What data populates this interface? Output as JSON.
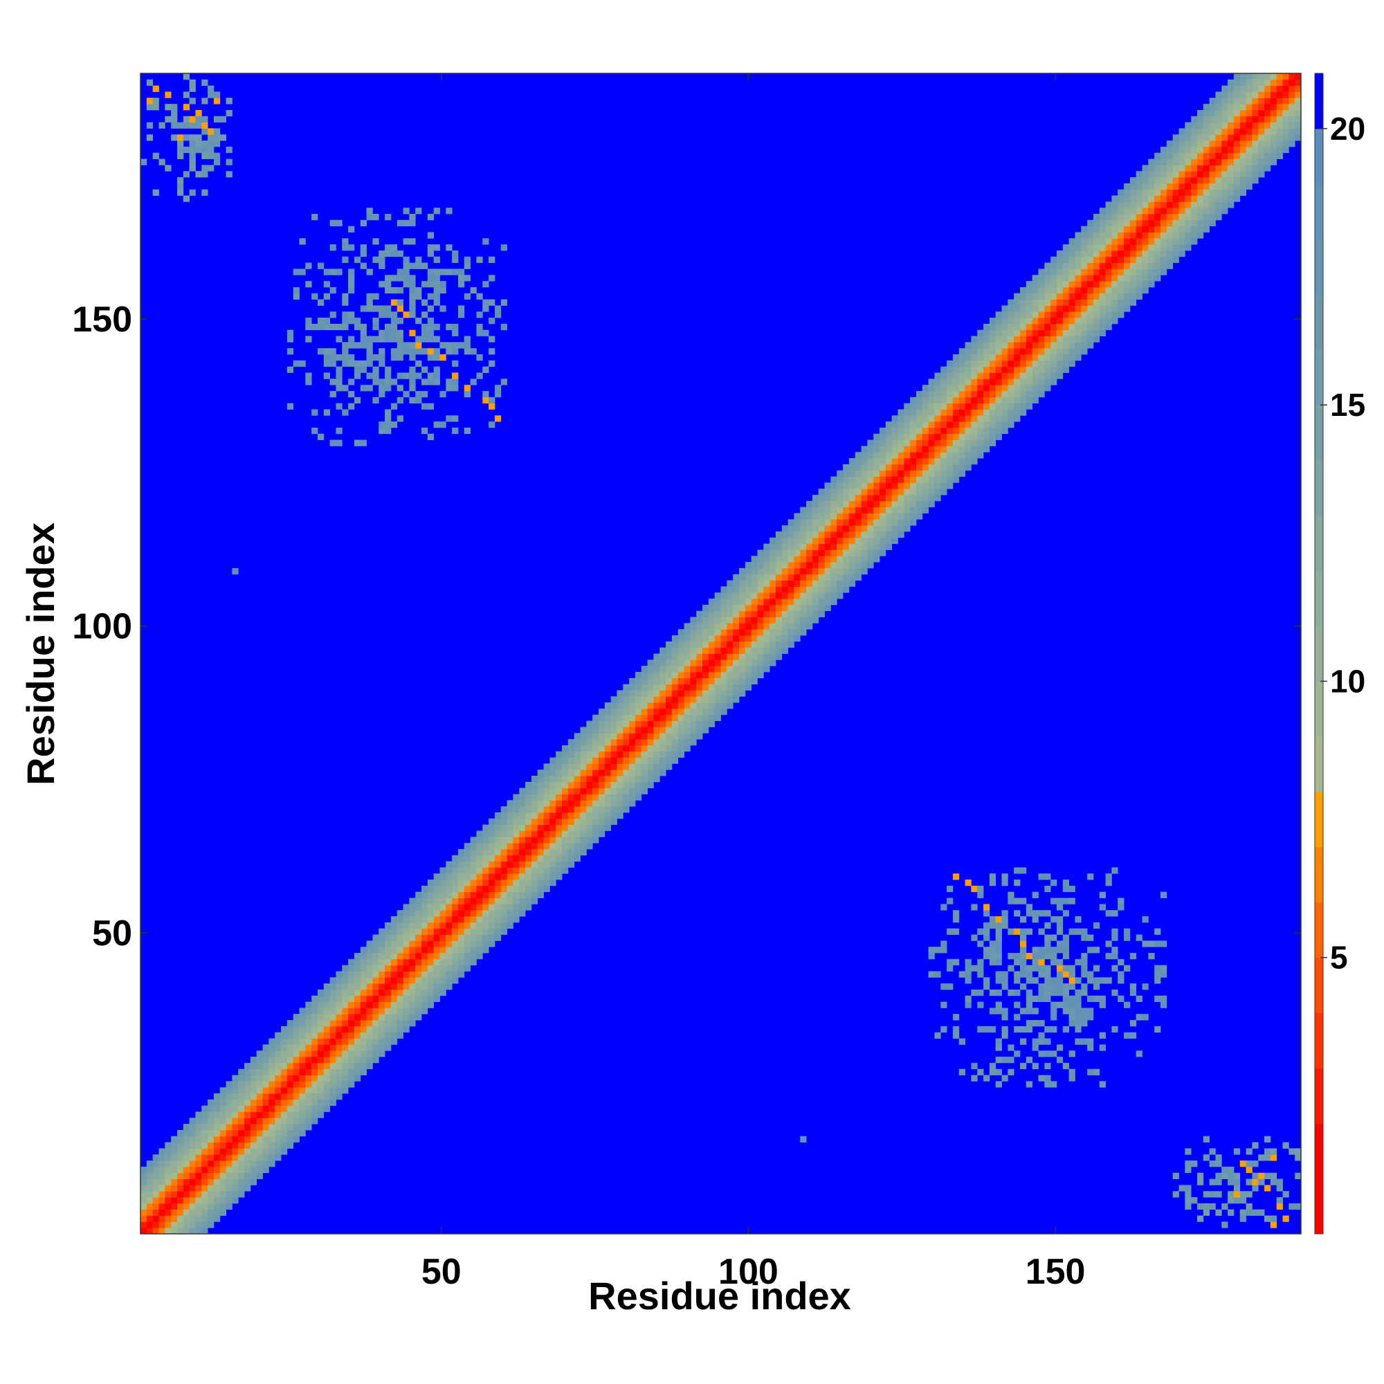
{
  "chart_data": {
    "type": "heatmap",
    "title": "",
    "xlabel": "Residue index",
    "ylabel": "Residue index",
    "xlim": [
      1,
      190
    ],
    "ylim": [
      1,
      190
    ],
    "x_ticks": [
      50,
      100,
      150
    ],
    "y_ticks": [
      50,
      100,
      150
    ],
    "grid": false,
    "legend": "none",
    "value_description": "pairwise residue distance",
    "colorbar": {
      "position": "right",
      "range": [
        0,
        21
      ],
      "ticks": [
        5,
        10,
        15,
        20
      ],
      "levels": [
        {
          "from": 0,
          "to": 2,
          "color": "#ff0000"
        },
        {
          "from": 2,
          "to": 3,
          "color": "#ff1a00"
        },
        {
          "from": 3,
          "to": 4,
          "color": "#ff3300"
        },
        {
          "from": 4,
          "to": 5,
          "color": "#ff4d00"
        },
        {
          "from": 5,
          "to": 6,
          "color": "#ff6600"
        },
        {
          "from": 6,
          "to": 7,
          "color": "#ff8000"
        },
        {
          "from": 7,
          "to": 8,
          "color": "#ffa000"
        },
        {
          "from": 8,
          "to": 9,
          "color": "#a6b98f"
        },
        {
          "from": 9,
          "to": 10,
          "color": "#9db593"
        },
        {
          "from": 10,
          "to": 11,
          "color": "#95b097"
        },
        {
          "from": 11,
          "to": 12,
          "color": "#8dac9b"
        },
        {
          "from": 12,
          "to": 13,
          "color": "#86a89f"
        },
        {
          "from": 13,
          "to": 14,
          "color": "#7fa3a3"
        },
        {
          "from": 14,
          "to": 15,
          "color": "#789fa7"
        },
        {
          "from": 15,
          "to": 16,
          "color": "#729cab"
        },
        {
          "from": 16,
          "to": 17,
          "color": "#6c98af"
        },
        {
          "from": 17,
          "to": 18,
          "color": "#6794b3"
        },
        {
          "from": 18,
          "to": 19,
          "color": "#6291b7"
        },
        {
          "from": 19,
          "to": 20,
          "color": "#5e8dbb"
        },
        {
          "from": 20,
          "to": 21,
          "color": "#0000ff"
        }
      ]
    },
    "background_value": 21,
    "diagonal_band": {
      "profile": [
        {
          "offset": 0,
          "value": 1
        },
        {
          "offset": 1,
          "value": 3
        },
        {
          "offset": 2,
          "value": 5
        },
        {
          "offset": 3,
          "value": 6.5
        },
        {
          "offset": 4,
          "value": 8.5
        },
        {
          "offset": 5,
          "value": 10
        },
        {
          "offset": 6,
          "value": 11
        },
        {
          "offset": 7,
          "value": 12.5
        },
        {
          "offset": 8,
          "value": 14
        },
        {
          "offset": 9,
          "value": 15.5
        },
        {
          "offset": 10,
          "value": 17
        }
      ]
    },
    "off_diagonal_clusters": [
      {
        "x_range": [
          1,
          16
        ],
        "y_range": [
          170,
          190
        ],
        "typical_value": 16.5,
        "hotspots": [
          [
            3,
            188
          ],
          [
            5,
            187
          ],
          [
            8,
            185
          ],
          [
            10,
            184
          ],
          [
            11,
            182
          ],
          [
            12,
            181
          ],
          [
            9,
            183
          ],
          [
            2,
            186
          ],
          [
            7,
            180
          ],
          [
            13,
            186
          ]
        ]
      },
      {
        "x_range": [
          25,
          60
        ],
        "y_range": [
          130,
          168
        ],
        "typical_value": 17.5,
        "hotspots": [
          [
            42,
            153
          ],
          [
            43,
            152
          ],
          [
            44,
            151
          ],
          [
            45,
            148
          ],
          [
            46,
            146
          ],
          [
            48,
            145
          ],
          [
            50,
            144
          ],
          [
            52,
            141
          ],
          [
            54,
            139
          ],
          [
            57,
            137
          ],
          [
            58,
            136
          ],
          [
            59,
            134
          ]
        ]
      },
      {
        "x_range": [
          130,
          168
        ],
        "y_range": [
          25,
          60
        ],
        "typical_value": 17.5,
        "hotspots": [
          [
            134,
            59
          ],
          [
            136,
            58
          ],
          [
            137,
            57
          ],
          [
            139,
            54
          ],
          [
            141,
            52
          ],
          [
            144,
            50
          ],
          [
            145,
            48
          ],
          [
            146,
            46
          ],
          [
            148,
            45
          ],
          [
            151,
            44
          ],
          [
            152,
            43
          ],
          [
            153,
            42
          ]
        ]
      },
      {
        "x_range": [
          170,
          190
        ],
        "y_range": [
          1,
          16
        ],
        "typical_value": 16.5,
        "hotspots": [
          [
            188,
            3
          ],
          [
            187,
            5
          ],
          [
            185,
            8
          ],
          [
            184,
            10
          ],
          [
            182,
            11
          ],
          [
            181,
            12
          ],
          [
            183,
            9
          ],
          [
            186,
            2
          ],
          [
            180,
            7
          ],
          [
            186,
            13
          ]
        ]
      }
    ],
    "isolated_points": [
      {
        "x": 16,
        "y": 109,
        "value": 18
      },
      {
        "x": 109,
        "y": 16,
        "value": 18
      }
    ]
  }
}
